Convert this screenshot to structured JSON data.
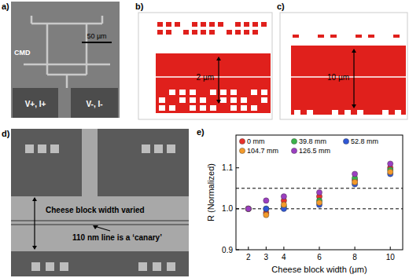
{
  "figure": {
    "panels": {
      "a": {
        "label": "a)",
        "chip_label": "CMD",
        "scale_bar": "50 µm",
        "pad_left": "V+, I+",
        "pad_right": "V-, I-"
      },
      "b": {
        "label": "b)",
        "dimension": "2 µm"
      },
      "c": {
        "label": "c)",
        "dimension": "10 µm"
      },
      "d": {
        "label": "d)",
        "arrow_text": "Cheese block width varied",
        "line_text": "110 nm line is a ‘canary’"
      },
      "e": {
        "label": "e)"
      }
    }
  },
  "chart_data": {
    "type": "scatter",
    "x_label": "Cheese block width (μm)",
    "y_label": "R (Normalized)",
    "x": [
      2,
      3,
      4,
      6,
      8,
      10
    ],
    "xlim": [
      1.3,
      10.7
    ],
    "xticks": [
      2,
      3,
      4,
      6,
      8,
      10
    ],
    "ylim": [
      0.9,
      1.18
    ],
    "yticks": [
      0.9,
      {
        "value": 1,
        "label": "1.0"
      },
      1.1
    ],
    "reference_lines": [
      1.0,
      1.05
    ],
    "grid": false,
    "legend": "upper left",
    "marker": "circle",
    "series": [
      {
        "name": "0 mm",
        "color": "#e8312a",
        "values": [
          1.0,
          0.99,
          1.02,
          1.03,
          1.07,
          1.1
        ]
      },
      {
        "name": "39.8 mm",
        "color": "#3bb34a",
        "values": [
          1.0,
          1.0,
          1.005,
          1.02,
          1.075,
          1.095
        ]
      },
      {
        "name": "52.8 mm",
        "color": "#2f57d6",
        "values": [
          1.0,
          1.0,
          1.0,
          1.01,
          1.06,
          1.085
        ]
      },
      {
        "name": "104.7 mm",
        "color": "#f39a2b",
        "values": [
          1.0,
          0.985,
          1.01,
          1.015,
          1.065,
          1.09
        ]
      },
      {
        "name": "126.5 mm",
        "color": "#9b3fc0",
        "values": [
          1.0,
          1.02,
          1.03,
          1.04,
          1.085,
          1.11
        ]
      }
    ]
  }
}
